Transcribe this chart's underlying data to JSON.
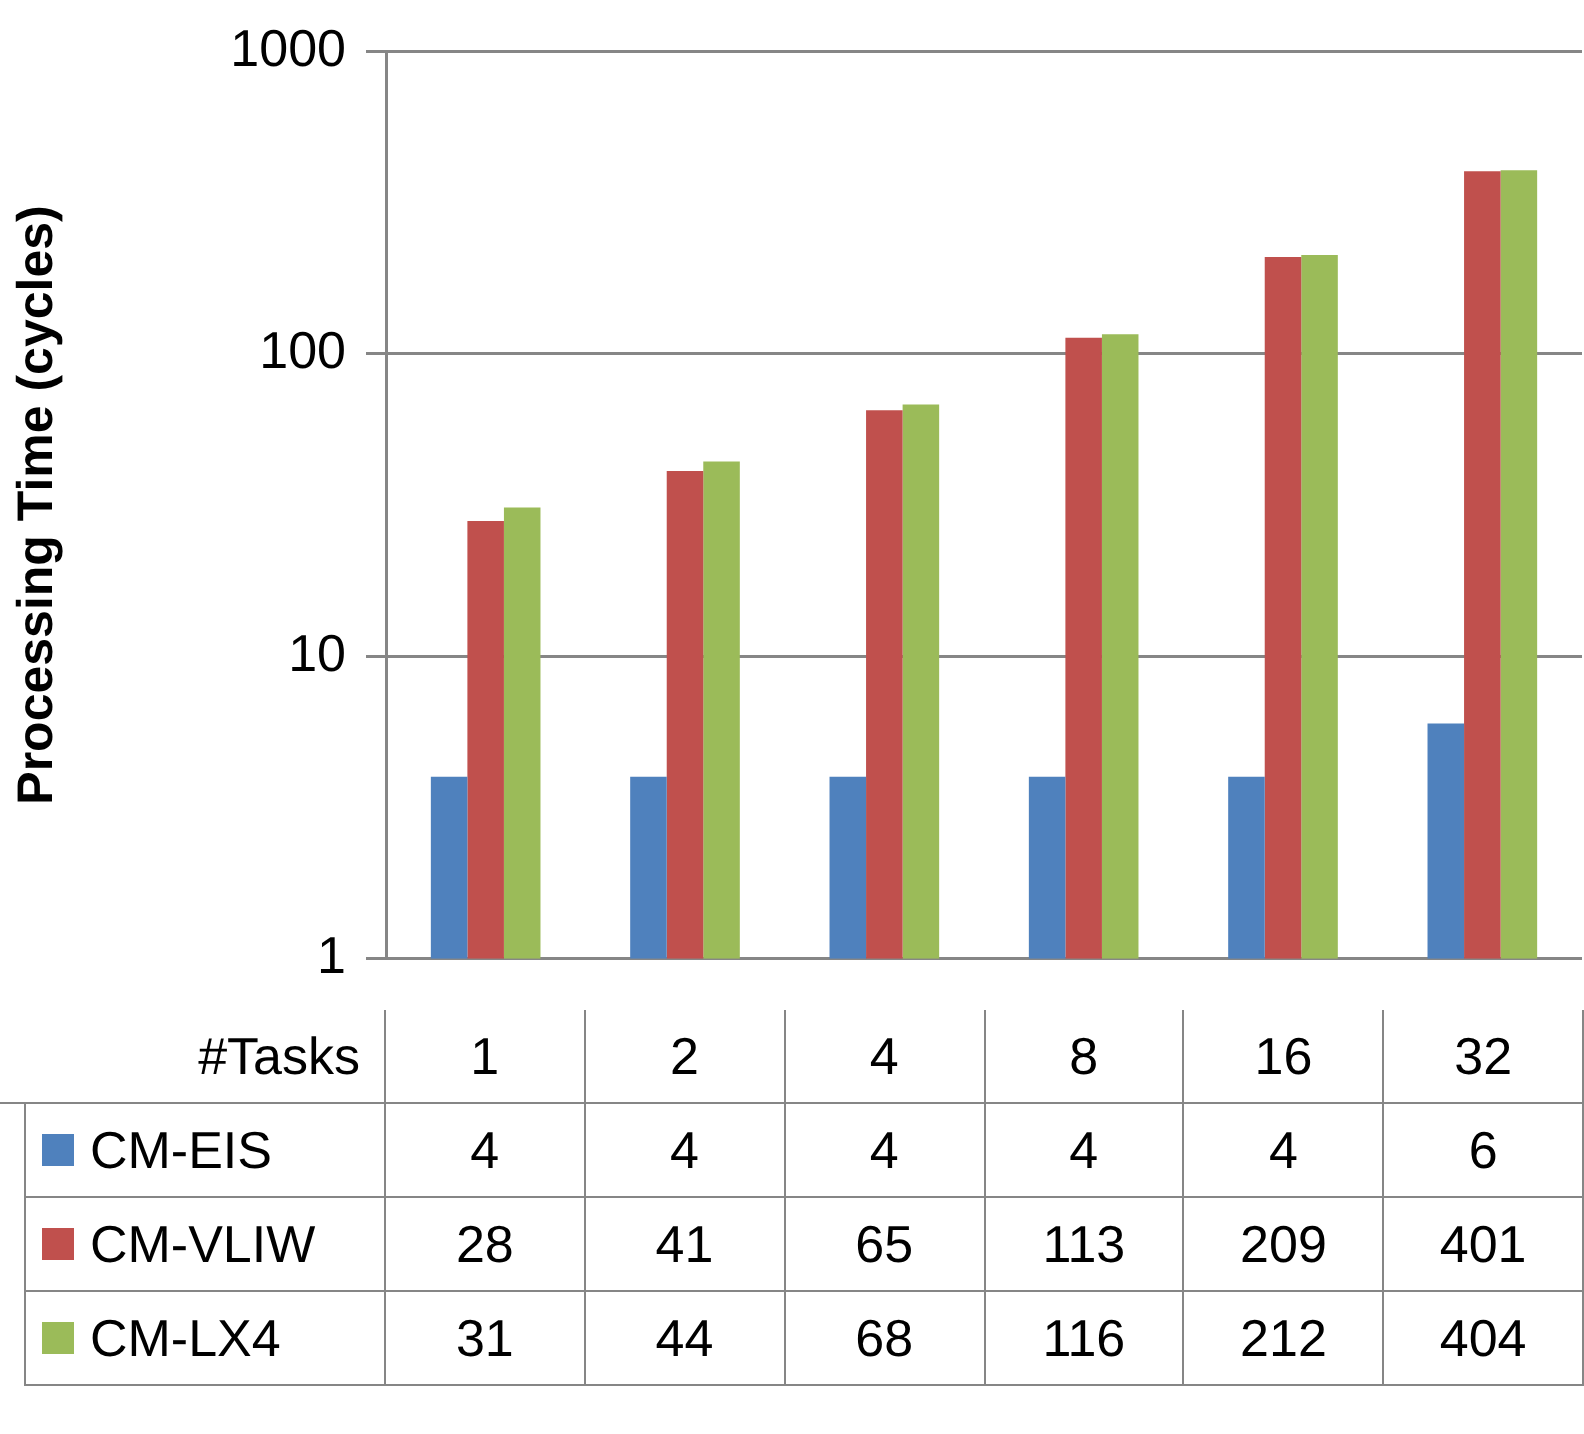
{
  "chart_data": {
    "type": "bar",
    "ylabel": "Processing Time (cycles)",
    "xlabel": "#Tasks",
    "categories": [
      "1",
      "2",
      "4",
      "8",
      "16",
      "32"
    ],
    "series": [
      {
        "name": "CM-EIS",
        "color": "#4f81bd",
        "values": [
          4,
          4,
          4,
          4,
          4,
          6
        ]
      },
      {
        "name": "CM-VLIW",
        "color": "#c0504d",
        "values": [
          28,
          41,
          65,
          113,
          209,
          401
        ]
      },
      {
        "name": "CM-LX4",
        "color": "#9bbb59",
        "values": [
          31,
          44,
          68,
          116,
          212,
          404
        ]
      }
    ],
    "log": "y",
    "ylim": [
      1,
      1000
    ],
    "yticks": [
      1,
      10,
      100,
      1000
    ],
    "grid": "y",
    "legend": "bottom left",
    "data_labels": true
  }
}
